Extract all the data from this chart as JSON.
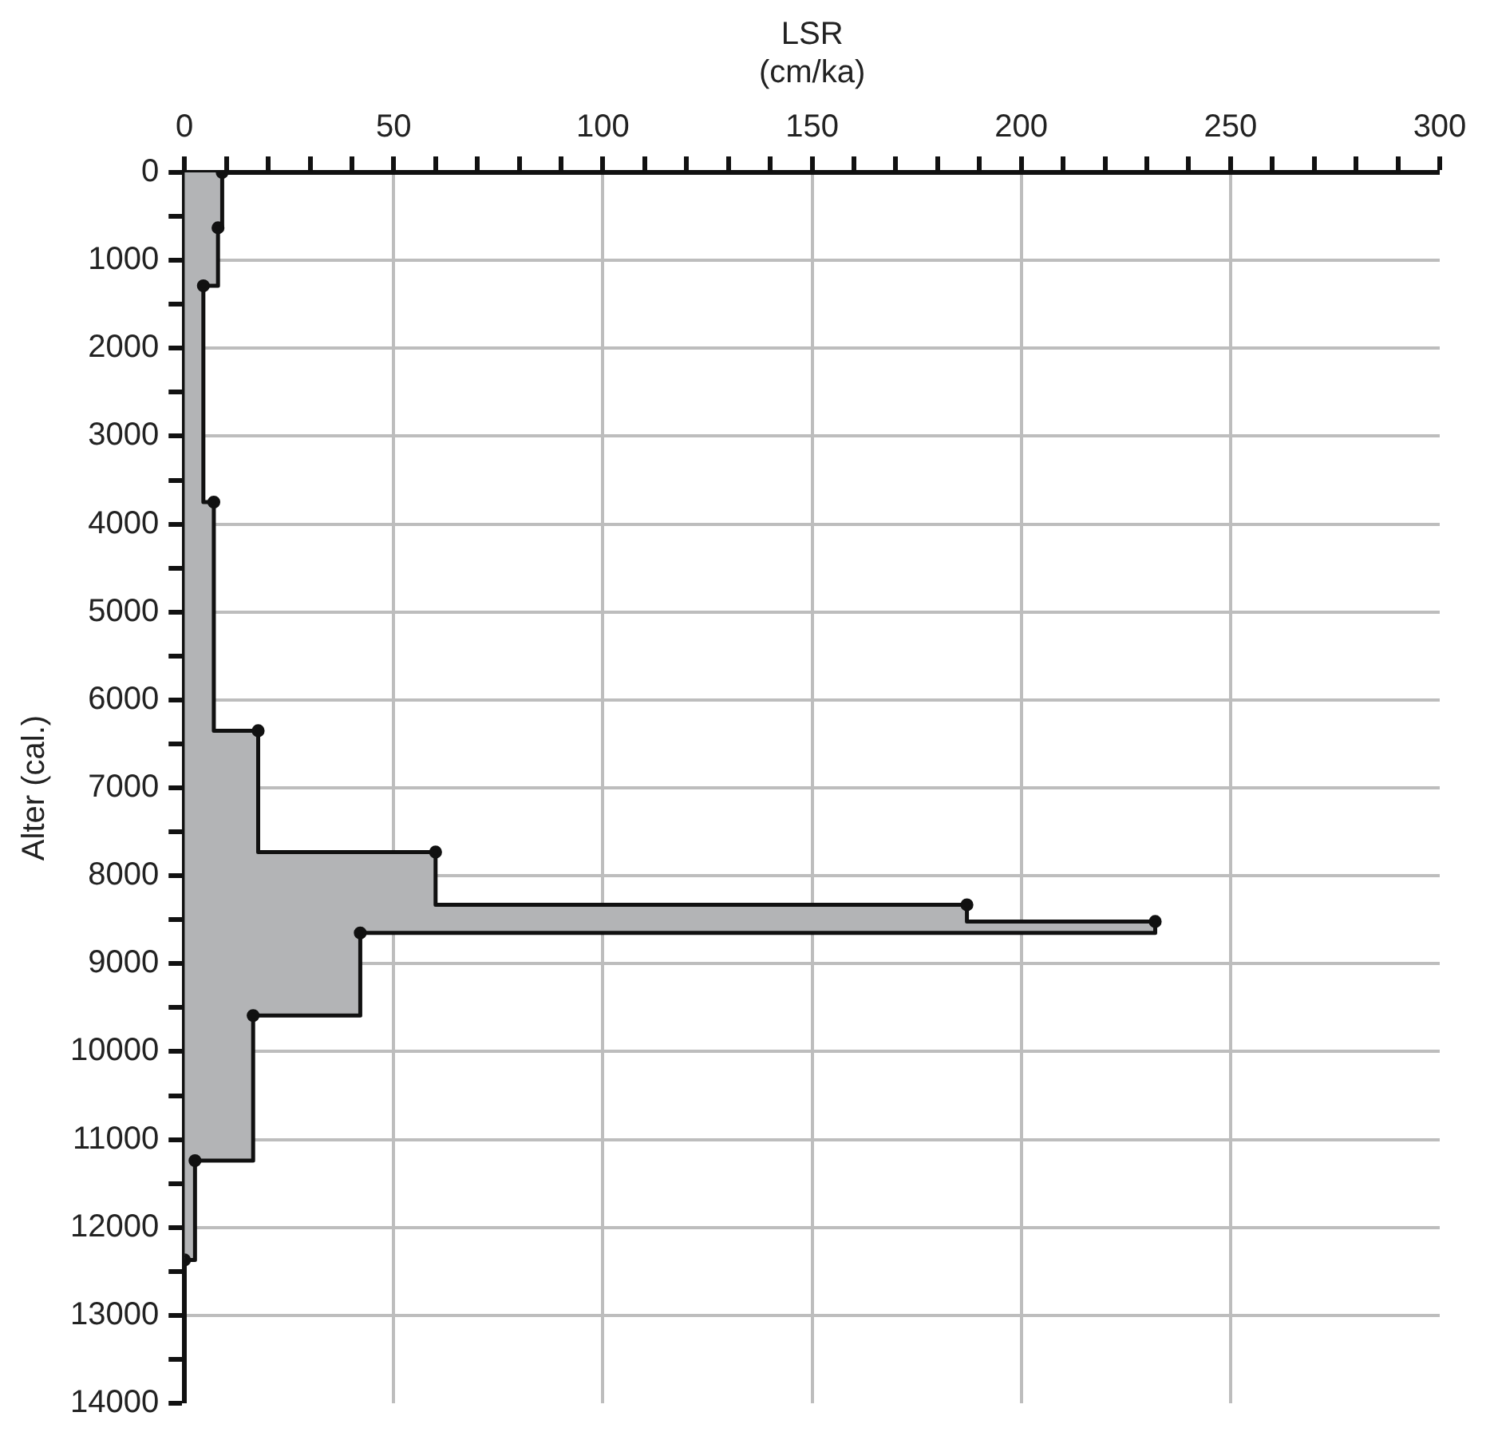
{
  "chart_data": {
    "type": "step",
    "orientation": "horizontal",
    "xlabel": "LSR\n(cm/ka)",
    "ylabel": "Alter (cal.)",
    "x": [
      0,
      630,
      1290,
      3750,
      6350,
      7730,
      8330,
      8520,
      8650,
      9590,
      11240,
      12370
    ],
    "series": [
      {
        "type": "area",
        "color": "#b3b4b6",
        "values": [
          9,
          8,
          4.5,
          7,
          17.6,
          60,
          187,
          232,
          42,
          16.4,
          2.5,
          0
        ]
      }
    ],
    "xlim": [
      0,
      300
    ],
    "xticks": [
      0,
      {
        "value": 10,
        "label": null
      },
      {
        "value": 20,
        "label": null
      },
      {
        "value": 30,
        "label": null
      },
      {
        "value": 40,
        "label": null
      },
      50,
      {
        "value": 60,
        "label": null
      },
      {
        "value": 70,
        "label": null
      },
      {
        "value": 80,
        "label": null
      },
      {
        "value": 90,
        "label": null
      },
      100,
      {
        "value": 110,
        "label": null
      },
      {
        "value": 120,
        "label": null
      },
      {
        "value": 130,
        "label": null
      },
      {
        "value": 140,
        "label": null
      },
      150,
      {
        "value": 160,
        "label": null
      },
      {
        "value": 170,
        "label": null
      },
      {
        "value": 180,
        "label": null
      },
      {
        "value": 190,
        "label": null
      },
      200,
      {
        "value": 210,
        "label": null
      },
      {
        "value": 220,
        "label": null
      },
      {
        "value": 230,
        "label": null
      },
      {
        "value": 240,
        "label": null
      },
      250,
      {
        "value": 260,
        "label": null
      },
      {
        "value": 270,
        "label": null
      },
      {
        "value": 280,
        "label": null
      },
      {
        "value": 290,
        "label": null
      },
      300
    ],
    "ylim": [
      14000,
      0
    ],
    "yticks": [
      0,
      {
        "value": 500,
        "label": null
      },
      1000,
      {
        "value": 1500,
        "label": null
      },
      2000,
      {
        "value": 2500,
        "label": null
      },
      3000,
      {
        "value": 3500,
        "label": null
      },
      4000,
      {
        "value": 4500,
        "label": null
      },
      5000,
      {
        "value": 5500,
        "label": null
      },
      6000,
      {
        "value": 6500,
        "label": null
      },
      7000,
      {
        "value": 7500,
        "label": null
      },
      8000,
      {
        "value": 8500,
        "label": null
      },
      9000,
      {
        "value": 9500,
        "label": null
      },
      10000,
      {
        "value": 10500,
        "label": null
      },
      11000,
      {
        "value": 11500,
        "label": null
      },
      12000,
      {
        "value": 12500,
        "label": null
      },
      13000,
      {
        "value": 13500,
        "label": null
      },
      14000
    ],
    "grid": true,
    "marker": "circle",
    "legend": false
  }
}
